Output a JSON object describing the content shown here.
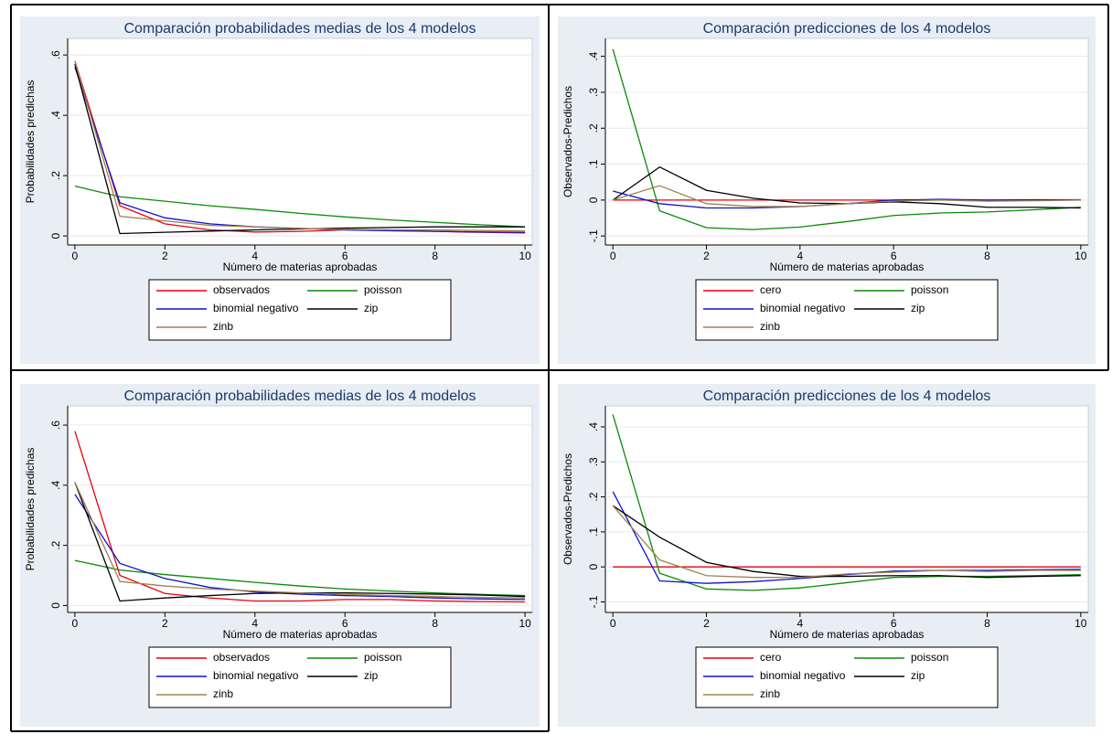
{
  "chart_data": [
    {
      "type": "line",
      "title": "Comparación probabilidades medias de los 4 modelos",
      "xlabel": "Número de materias aprobadas",
      "ylabel": "Probabilidades predichas",
      "x": [
        0,
        1,
        2,
        3,
        4,
        5,
        6,
        7,
        8,
        9,
        10
      ],
      "xlim": [
        -0.16,
        10.16
      ],
      "xticks": [
        0,
        2,
        4,
        6,
        8,
        10
      ],
      "ylim": [
        -0.03,
        0.655
      ],
      "yticks": [
        0,
        {
          "value": 0.2,
          "label": ".2"
        },
        {
          "value": 0.4,
          "label": ".4"
        },
        {
          "value": 0.6,
          "label": ".6"
        }
      ],
      "grid": true,
      "series": [
        {
          "name": "observados",
          "color": "#e8000b",
          "values": [
            0.58,
            0.1,
            0.04,
            0.02,
            0.013,
            0.015,
            0.02,
            0.02,
            0.015,
            0.012,
            0.01
          ]
        },
        {
          "name": "poisson",
          "color": "#0a8a0a",
          "values": [
            0.165,
            0.13,
            0.115,
            0.1,
            0.088,
            0.075,
            0.063,
            0.053,
            0.045,
            0.037,
            0.03
          ]
        },
        {
          "name": "binomial negativo",
          "color": "#1010cc",
          "values": [
            0.56,
            0.11,
            0.06,
            0.04,
            0.03,
            0.025,
            0.02,
            0.017,
            0.015,
            0.013,
            0.012
          ]
        },
        {
          "name": "zip",
          "color": "#000000",
          "values": [
            0.57,
            0.008,
            0.012,
            0.016,
            0.02,
            0.023,
            0.026,
            0.028,
            0.03,
            0.03,
            0.03
          ]
        },
        {
          "name": "zinb",
          "color": "#a08050",
          "values": [
            0.58,
            0.065,
            0.05,
            0.035,
            0.03,
            0.025,
            0.022,
            0.02,
            0.02,
            0.018,
            0.017
          ]
        }
      ]
    },
    {
      "type": "line",
      "title": "Comparación predicciones de los 4 modelos",
      "xlabel": "Número de materias aprobadas",
      "ylabel": "Observados-Predichos",
      "x": [
        0,
        1,
        2,
        3,
        4,
        5,
        6,
        7,
        8,
        9,
        10
      ],
      "xlim": [
        -0.16,
        10.16
      ],
      "xticks": [
        0,
        2,
        4,
        6,
        8,
        10
      ],
      "ylim": [
        -0.125,
        0.45
      ],
      "yticks": [
        {
          "value": -0.1,
          "label": "-.1"
        },
        0,
        {
          "value": 0.1,
          "label": ".1"
        },
        {
          "value": 0.2,
          "label": ".2"
        },
        {
          "value": 0.3,
          "label": ".3"
        },
        {
          "value": 0.4,
          "label": ".4"
        }
      ],
      "grid": true,
      "series": [
        {
          "name": "cero",
          "color": "#e8000b",
          "values": [
            0,
            0,
            0,
            0,
            0,
            0,
            0,
            0,
            0,
            0,
            0
          ]
        },
        {
          "name": "poisson",
          "color": "#0a8a0a",
          "values": [
            0.42,
            -0.03,
            -0.077,
            -0.082,
            -0.075,
            -0.06,
            -0.043,
            -0.036,
            -0.033,
            -0.027,
            -0.02
          ]
        },
        {
          "name": "binomial negativo",
          "color": "#1010cc",
          "values": [
            0.025,
            -0.01,
            -0.022,
            -0.022,
            -0.018,
            -0.01,
            0,
            0.002,
            0,
            0.001,
            0.001
          ]
        },
        {
          "name": "zip",
          "color": "#000000",
          "values": [
            0,
            0.092,
            0.027,
            0.005,
            -0.008,
            -0.01,
            -0.005,
            -0.01,
            -0.02,
            -0.02,
            -0.022
          ]
        },
        {
          "name": "zinb",
          "color": "#a08050",
          "values": [
            0,
            0.04,
            -0.01,
            -0.018,
            -0.018,
            -0.01,
            -0.003,
            0,
            -0.003,
            -0.002,
            0
          ]
        }
      ]
    },
    {
      "type": "line",
      "title": "Comparación probabilidades medias de los 4 modelos",
      "xlabel": "Número de materias aprobadas",
      "ylabel": "Probabilidades predichas",
      "x": [
        0,
        1,
        2,
        3,
        4,
        5,
        6,
        7,
        8,
        9,
        10
      ],
      "xlim": [
        -0.16,
        10.16
      ],
      "xticks": [
        0,
        2,
        4,
        6,
        8,
        10
      ],
      "ylim": [
        -0.023,
        0.664
      ],
      "yticks": [
        0,
        {
          "value": 0.2,
          "label": ".2"
        },
        {
          "value": 0.4,
          "label": ".4"
        },
        {
          "value": 0.6,
          "label": ".6"
        }
      ],
      "grid": true,
      "series": [
        {
          "name": "observados",
          "color": "#e8000b",
          "values": [
            0.58,
            0.1,
            0.04,
            0.025,
            0.015,
            0.015,
            0.02,
            0.02,
            0.015,
            0.013,
            0.012
          ]
        },
        {
          "name": "poisson",
          "color": "#0a8a0a",
          "values": [
            0.15,
            0.118,
            0.103,
            0.09,
            0.077,
            0.065,
            0.055,
            0.048,
            0.042,
            0.037,
            0.033
          ]
        },
        {
          "name": "binomial negativo",
          "color": "#1010cc",
          "values": [
            0.37,
            0.14,
            0.09,
            0.06,
            0.045,
            0.038,
            0.033,
            0.03,
            0.025,
            0.022,
            0.02
          ]
        },
        {
          "name": "zip",
          "color": "#000000",
          "values": [
            0.41,
            0.015,
            0.025,
            0.033,
            0.04,
            0.042,
            0.042,
            0.04,
            0.038,
            0.035,
            0.03
          ]
        },
        {
          "name": "zinb",
          "color": "#a08050",
          "values": [
            0.41,
            0.08,
            0.065,
            0.055,
            0.048,
            0.042,
            0.037,
            0.033,
            0.03,
            0.027,
            0.025
          ]
        }
      ]
    },
    {
      "type": "line",
      "title": "Comparación predicciones de los 4 modelos",
      "xlabel": "Número de materias aprobadas",
      "ylabel": "Observados-Predichos",
      "x": [
        0,
        1,
        2,
        3,
        4,
        5,
        6,
        7,
        8,
        9,
        10
      ],
      "xlim": [
        -0.16,
        10.16
      ],
      "xticks": [
        0,
        2,
        4,
        6,
        8,
        10
      ],
      "ylim": [
        -0.13,
        0.46
      ],
      "yticks": [
        {
          "value": -0.1,
          "label": "-.1"
        },
        0,
        {
          "value": 0.1,
          "label": ".1"
        },
        {
          "value": 0.2,
          "label": ".2"
        },
        {
          "value": 0.3,
          "label": ".3"
        },
        {
          "value": 0.4,
          "label": ".4"
        }
      ],
      "grid": true,
      "series": [
        {
          "name": "cero",
          "color": "#e8000b",
          "values": [
            0,
            0,
            0,
            0,
            0,
            0,
            0,
            0,
            0,
            0,
            0
          ]
        },
        {
          "name": "poisson",
          "color": "#0a8a0a",
          "values": [
            0.435,
            -0.018,
            -0.063,
            -0.067,
            -0.06,
            -0.045,
            -0.03,
            -0.027,
            -0.027,
            -0.025,
            -0.022
          ]
        },
        {
          "name": "binomial negativo",
          "color": "#1010cc",
          "values": [
            0.215,
            -0.04,
            -0.047,
            -0.042,
            -0.033,
            -0.022,
            -0.012,
            -0.01,
            -0.01,
            -0.008,
            -0.007
          ]
        },
        {
          "name": "zip",
          "color": "#000000",
          "values": [
            0.175,
            0.085,
            0.013,
            -0.013,
            -0.027,
            -0.027,
            -0.025,
            -0.025,
            -0.03,
            -0.027,
            -0.025
          ]
        },
        {
          "name": "zinb",
          "color": "#a08050",
          "values": [
            0.175,
            0.02,
            -0.025,
            -0.03,
            -0.03,
            -0.02,
            -0.015,
            -0.01,
            -0.013,
            -0.01,
            -0.01
          ]
        }
      ]
    }
  ]
}
